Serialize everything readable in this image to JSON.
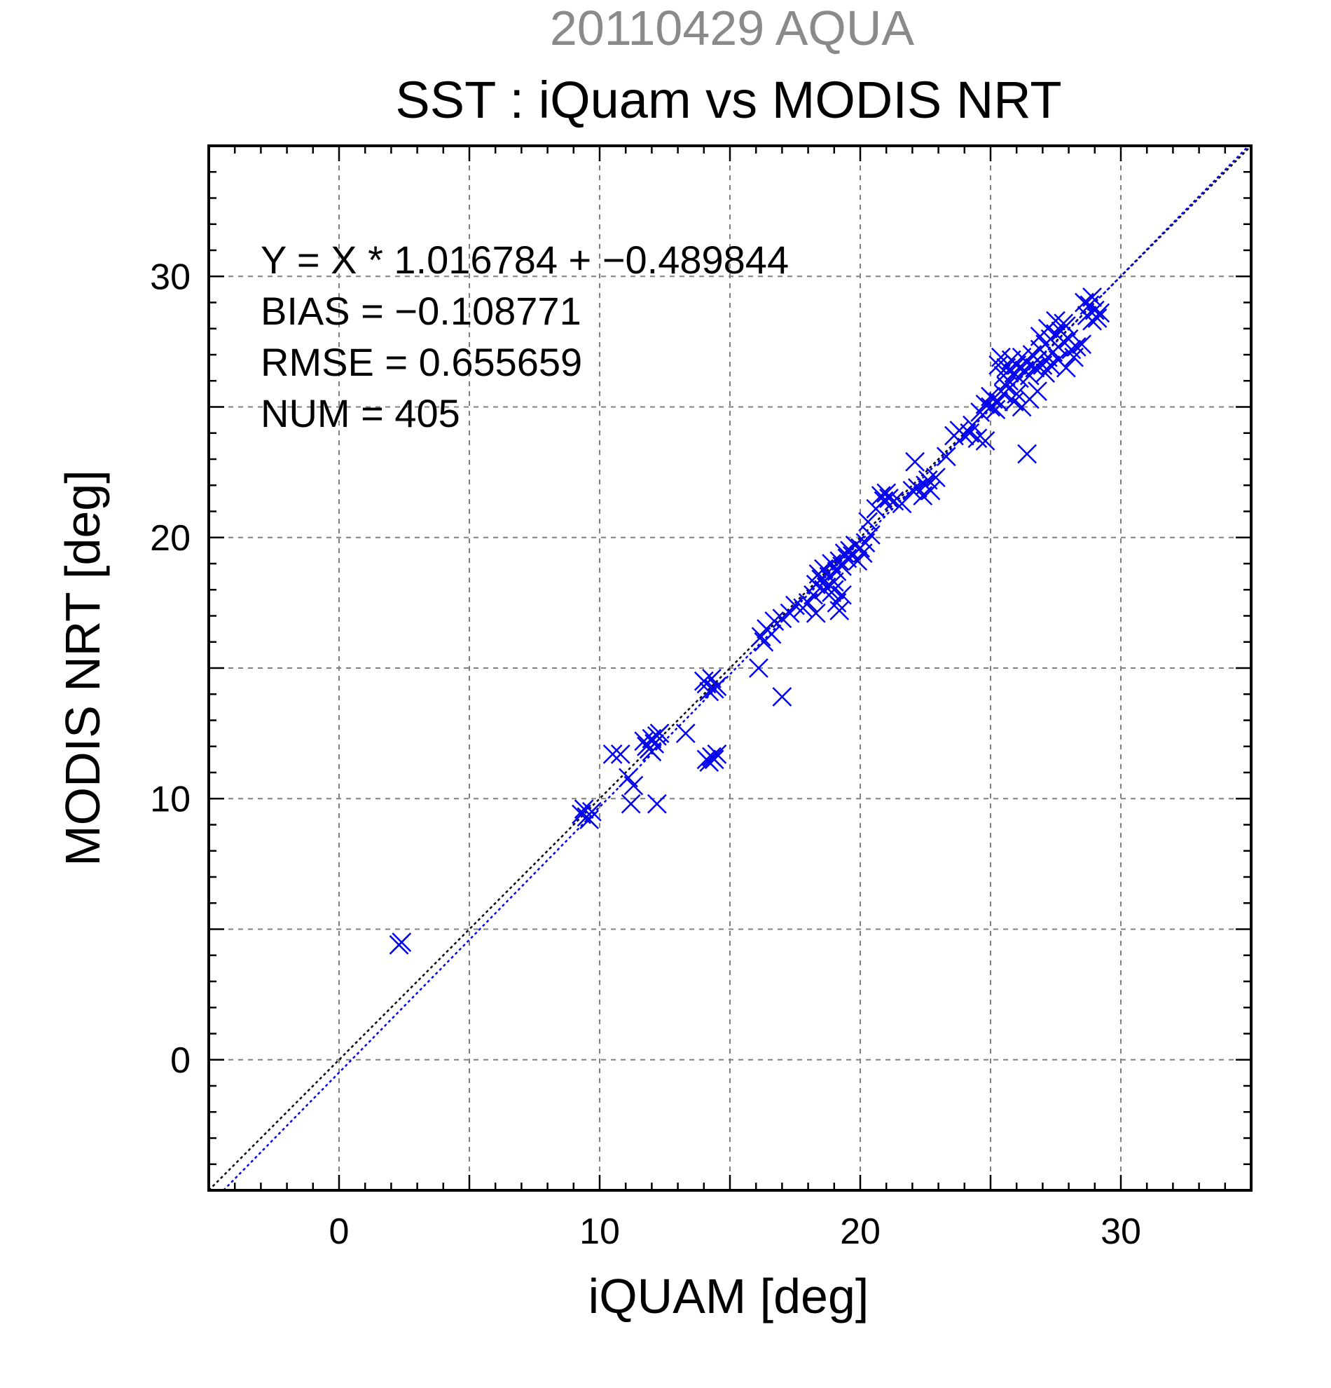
{
  "chart_data": {
    "type": "scatter",
    "subtitle": "20110429 AQUA",
    "title": "SST : iQuam vs MODIS NRT",
    "xlabel": "iQUAM [deg]",
    "ylabel": "MODIS NRT [deg]",
    "xlim": [
      -5,
      35
    ],
    "ylim": [
      -5,
      35
    ],
    "xticks": [
      0,
      10,
      20,
      30
    ],
    "yticks": [
      0,
      10,
      20,
      30
    ],
    "grid": true,
    "colors": {
      "points": "#0000ee",
      "fit_line": "#0000ee",
      "identity_line": "#000000",
      "subtitle": "#8a8a8a"
    },
    "stats": [
      "Y = X * 1.016784 + −0.489844",
      "BIAS = −0.108771",
      "RMSE = 0.655659",
      "NUM = 405"
    ],
    "fit": {
      "slope": 1.016784,
      "intercept": -0.489844
    },
    "series": [
      {
        "marker": "x",
        "points": [
          [
            2.4,
            4.5
          ],
          [
            2.3,
            4.4
          ],
          [
            9.3,
            9.4
          ],
          [
            9.5,
            9.3
          ],
          [
            9.7,
            9.5
          ],
          [
            9.4,
            9.6
          ],
          [
            9.6,
            9.2
          ],
          [
            10.5,
            11.7
          ],
          [
            10.8,
            11.7
          ],
          [
            11.1,
            10.8
          ],
          [
            11.3,
            10.5
          ],
          [
            11.2,
            9.8
          ],
          [
            12.2,
            9.8
          ],
          [
            11.8,
            12.0
          ],
          [
            12.0,
            12.3
          ],
          [
            12.2,
            12.4
          ],
          [
            11.9,
            11.9
          ],
          [
            12.1,
            12.1
          ],
          [
            12.3,
            12.5
          ],
          [
            11.7,
            12.2
          ],
          [
            12.0,
            11.8
          ],
          [
            13.3,
            12.5
          ],
          [
            14.1,
            14.4
          ],
          [
            14.3,
            14.6
          ],
          [
            14.4,
            14.2
          ],
          [
            14.2,
            14.1
          ],
          [
            14.5,
            14.3
          ],
          [
            14.0,
            14.5
          ],
          [
            14.1,
            11.5
          ],
          [
            14.3,
            11.6
          ],
          [
            14.5,
            11.7
          ],
          [
            14.2,
            11.4
          ],
          [
            14.4,
            11.5
          ],
          [
            16.1,
            15.0
          ],
          [
            17.0,
            13.9
          ],
          [
            16.2,
            16.2
          ],
          [
            16.4,
            16.5
          ],
          [
            16.6,
            16.3
          ],
          [
            16.3,
            16.0
          ],
          [
            16.7,
            16.8
          ],
          [
            17.0,
            16.9
          ],
          [
            17.3,
            17.1
          ],
          [
            17.5,
            17.4
          ],
          [
            17.8,
            17.3
          ],
          [
            18.0,
            17.5
          ],
          [
            18.2,
            17.8
          ],
          [
            18.3,
            18.2
          ],
          [
            18.4,
            18.6
          ],
          [
            18.5,
            18.4
          ],
          [
            18.6,
            18.8
          ],
          [
            18.7,
            18.1
          ],
          [
            18.8,
            18.5
          ],
          [
            18.9,
            19.0
          ],
          [
            19.0,
            18.3
          ],
          [
            19.1,
            18.7
          ],
          [
            19.2,
            19.1
          ],
          [
            19.3,
            18.9
          ],
          [
            19.4,
            19.4
          ],
          [
            19.5,
            19.2
          ],
          [
            19.6,
            19.5
          ],
          [
            19.7,
            19.3
          ],
          [
            19.8,
            19.7
          ],
          [
            19.9,
            19.1
          ],
          [
            20.0,
            19.6
          ],
          [
            20.1,
            19.4
          ],
          [
            20.2,
            19.8
          ],
          [
            20.4,
            20.1
          ],
          [
            18.3,
            17.1
          ],
          [
            19.2,
            17.2
          ],
          [
            19.1,
            17.5
          ],
          [
            19.3,
            17.8
          ],
          [
            18.9,
            17.9
          ],
          [
            18.6,
            18.0
          ],
          [
            19.0,
            18.0
          ],
          [
            20.3,
            20.6
          ],
          [
            20.6,
            21.1
          ],
          [
            20.8,
            21.6
          ],
          [
            21.0,
            21.7
          ],
          [
            21.1,
            21.5
          ],
          [
            20.9,
            21.4
          ],
          [
            21.3,
            21.4
          ],
          [
            21.6,
            21.3
          ],
          [
            22.0,
            21.8
          ],
          [
            22.2,
            21.9
          ],
          [
            22.1,
            22.9
          ],
          [
            22.5,
            22.0
          ],
          [
            22.6,
            22.2
          ],
          [
            22.7,
            21.8
          ],
          [
            22.9,
            22.3
          ],
          [
            22.4,
            21.6
          ],
          [
            23.3,
            23.1
          ],
          [
            23.6,
            23.9
          ],
          [
            23.8,
            24.1
          ],
          [
            24.0,
            23.9
          ],
          [
            24.2,
            24.0
          ],
          [
            24.5,
            23.8
          ],
          [
            24.8,
            23.7
          ],
          [
            24.3,
            24.3
          ],
          [
            24.6,
            24.8
          ],
          [
            24.8,
            25.1
          ],
          [
            25.0,
            25.0
          ],
          [
            25.1,
            25.3
          ],
          [
            25.2,
            24.9
          ],
          [
            25.3,
            25.2
          ],
          [
            25.5,
            25.5
          ],
          [
            25.0,
            25.4
          ],
          [
            25.3,
            26.6
          ],
          [
            25.4,
            26.9
          ],
          [
            25.5,
            26.2
          ],
          [
            25.6,
            26.5
          ],
          [
            25.7,
            26.0
          ],
          [
            25.8,
            26.8
          ],
          [
            25.9,
            26.3
          ],
          [
            26.0,
            26.6
          ],
          [
            26.1,
            26.1
          ],
          [
            26.2,
            26.9
          ],
          [
            26.3,
            26.4
          ],
          [
            26.4,
            26.7
          ],
          [
            26.5,
            26.2
          ],
          [
            26.6,
            27.0
          ],
          [
            26.7,
            26.5
          ],
          [
            26.8,
            26.8
          ],
          [
            26.9,
            27.2
          ],
          [
            27.0,
            26.6
          ],
          [
            27.1,
            27.4
          ],
          [
            27.2,
            26.9
          ],
          [
            27.3,
            27.6
          ],
          [
            27.4,
            27.1
          ],
          [
            27.5,
            27.8
          ],
          [
            27.6,
            27.3
          ],
          [
            27.7,
            27.9
          ],
          [
            27.8,
            27.5
          ],
          [
            27.9,
            28.1
          ],
          [
            28.0,
            27.6
          ],
          [
            27.2,
            28.0
          ],
          [
            27.5,
            28.3
          ],
          [
            27.8,
            28.2
          ],
          [
            26.9,
            27.7
          ],
          [
            27.1,
            26.3
          ],
          [
            27.3,
            26.6
          ],
          [
            27.6,
            26.8
          ],
          [
            27.9,
            26.5
          ],
          [
            28.1,
            27.2
          ],
          [
            28.3,
            27.3
          ],
          [
            28.5,
            27.4
          ],
          [
            28.2,
            26.9
          ],
          [
            28.7,
            28.5
          ],
          [
            28.8,
            28.9
          ],
          [
            28.9,
            29.2
          ],
          [
            29.0,
            28.7
          ],
          [
            29.1,
            28.4
          ],
          [
            29.2,
            28.6
          ],
          [
            28.6,
            29.0
          ],
          [
            28.9,
            28.3
          ],
          [
            25.9,
            25.2
          ],
          [
            26.2,
            25.0
          ],
          [
            26.5,
            25.3
          ],
          [
            26.8,
            25.6
          ],
          [
            26.4,
            23.2
          ],
          [
            25.6,
            25.8
          ],
          [
            26.0,
            25.5
          ]
        ]
      }
    ]
  }
}
